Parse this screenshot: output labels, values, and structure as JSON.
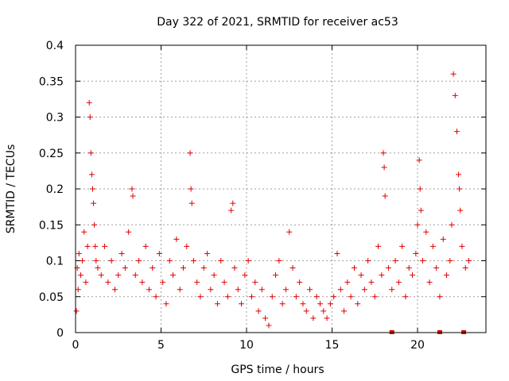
{
  "chart_data": {
    "type": "scatter",
    "title": "Day 322 of 2021, SRMTID for receiver ac53",
    "xlabel": "GPS time / hours",
    "ylabel": "SRMTID / TECUs",
    "xlim": [
      0,
      24
    ],
    "ylim": [
      0,
      0.4
    ],
    "x_ticks": [
      0,
      5,
      10,
      15,
      20
    ],
    "x_tick_labels": [
      "0",
      "5",
      "10",
      "15",
      "20"
    ],
    "y_ticks": [
      0,
      0.05,
      0.1,
      0.15,
      0.2,
      0.25,
      0.3,
      0.35,
      0.4
    ],
    "y_tick_labels": [
      "0",
      "0.05",
      "0.1",
      "0.15",
      "0.2",
      "0.25",
      "0.3",
      "0.35",
      "0.4"
    ],
    "grid": true,
    "marker": "plus",
    "color": "#e00000",
    "series": [
      {
        "name": "SRMTID",
        "x": [
          0.05,
          0.1,
          0.15,
          0.2,
          0.3,
          0.4,
          0.5,
          0.6,
          0.7,
          0.8,
          0.85,
          0.9,
          0.95,
          1.0,
          1.05,
          1.1,
          1.15,
          1.2,
          1.3,
          1.5,
          1.7,
          1.9,
          2.1,
          2.3,
          2.5,
          2.7,
          2.9,
          3.1,
          3.3,
          3.35,
          3.5,
          3.7,
          3.9,
          4.1,
          4.3,
          4.5,
          4.7,
          4.9,
          5.1,
          5.3,
          5.5,
          5.7,
          5.9,
          6.1,
          6.3,
          6.5,
          6.7,
          6.75,
          6.8,
          6.9,
          7.1,
          7.3,
          7.5,
          7.7,
          7.9,
          8.1,
          8.3,
          8.5,
          8.7,
          8.9,
          9.1,
          9.2,
          9.3,
          9.5,
          9.7,
          9.9,
          10.1,
          10.3,
          10.5,
          10.7,
          10.9,
          11.1,
          11.3,
          11.5,
          11.7,
          11.9,
          12.1,
          12.3,
          12.5,
          12.7,
          12.9,
          13.1,
          13.3,
          13.5,
          13.7,
          13.9,
          14.1,
          14.3,
          14.5,
          14.7,
          14.9,
          15.1,
          15.3,
          15.5,
          15.7,
          15.9,
          16.1,
          16.3,
          16.5,
          16.7,
          16.9,
          17.1,
          17.3,
          17.5,
          17.7,
          17.9,
          18.0,
          18.05,
          18.1,
          18.3,
          18.5,
          18.7,
          18.9,
          19.1,
          19.3,
          19.5,
          19.7,
          19.9,
          20.0,
          20.1,
          20.15,
          20.2,
          20.3,
          20.5,
          20.7,
          20.9,
          21.1,
          21.3,
          21.5,
          21.7,
          21.9,
          22.0,
          22.1,
          22.2,
          22.3,
          22.4,
          22.45,
          22.5,
          22.6,
          22.8,
          23.0
        ],
        "y": [
          0.03,
          0.09,
          0.06,
          0.11,
          0.08,
          0.1,
          0.14,
          0.07,
          0.12,
          0.32,
          0.3,
          0.25,
          0.22,
          0.2,
          0.18,
          0.15,
          0.12,
          0.1,
          0.09,
          0.08,
          0.12,
          0.07,
          0.1,
          0.06,
          0.08,
          0.11,
          0.09,
          0.14,
          0.2,
          0.19,
          0.08,
          0.1,
          0.07,
          0.12,
          0.06,
          0.09,
          0.05,
          0.11,
          0.07,
          0.04,
          0.1,
          0.08,
          0.13,
          0.06,
          0.09,
          0.12,
          0.25,
          0.2,
          0.18,
          0.1,
          0.07,
          0.05,
          0.09,
          0.11,
          0.06,
          0.08,
          0.04,
          0.1,
          0.07,
          0.05,
          0.17,
          0.18,
          0.09,
          0.06,
          0.04,
          0.08,
          0.1,
          0.05,
          0.07,
          0.03,
          0.06,
          0.02,
          0.01,
          0.05,
          0.08,
          0.1,
          0.04,
          0.06,
          0.14,
          0.09,
          0.05,
          0.07,
          0.04,
          0.03,
          0.06,
          0.02,
          0.05,
          0.04,
          0.03,
          0.02,
          0.04,
          0.05,
          0.11,
          0.06,
          0.03,
          0.07,
          0.05,
          0.09,
          0.04,
          0.08,
          0.06,
          0.1,
          0.07,
          0.05,
          0.12,
          0.08,
          0.25,
          0.23,
          0.19,
          0.09,
          0.06,
          0.1,
          0.07,
          0.12,
          0.05,
          0.09,
          0.08,
          0.11,
          0.15,
          0.24,
          0.2,
          0.17,
          0.1,
          0.14,
          0.07,
          0.12,
          0.09,
          0.05,
          0.13,
          0.08,
          0.1,
          0.15,
          0.36,
          0.33,
          0.28,
          0.22,
          0.2,
          0.17,
          0.12,
          0.09,
          0.1
        ],
        "color": "#e00000"
      }
    ],
    "ground_markers_x": [
      18.5,
      21.3,
      22.7
    ]
  }
}
